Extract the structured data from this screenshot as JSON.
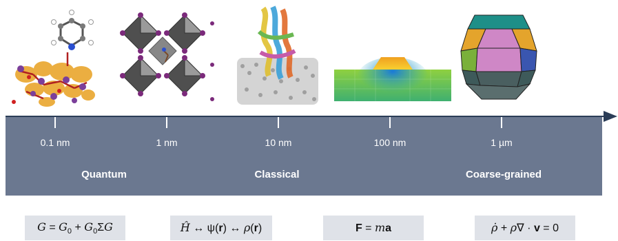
{
  "scale": {
    "ticks": [
      {
        "label": "0.1 nm"
      },
      {
        "label": "1 nm"
      },
      {
        "label": "10 nm"
      },
      {
        "label": "100 nm"
      },
      {
        "label": "1 µm"
      }
    ],
    "regimes": [
      "Quantum",
      "Classical",
      "Coarse-grained"
    ]
  },
  "equations": [
    {
      "id": "greens-function",
      "text": "G = G0 + G0ΣG"
    },
    {
      "id": "dft",
      "text": "Ĥ ↔ ψ(r) ↔ ρ(r)"
    },
    {
      "id": "newton",
      "text": "F = ma"
    },
    {
      "id": "continuity",
      "text": "ρ̇ + ρ∇ · v = 0"
    }
  ],
  "illustrations": [
    {
      "id": "molecule-on-surface",
      "icon": "molecule-surface-icon"
    },
    {
      "id": "perovskite-lattice",
      "icon": "octahedral-lattice-icon"
    },
    {
      "id": "protein-in-membrane",
      "icon": "protein-membrane-icon"
    },
    {
      "id": "finite-element-mesh",
      "icon": "fem-mesh-icon"
    },
    {
      "id": "polyhedral-particle",
      "icon": "polyhedron-icon"
    }
  ],
  "colors": {
    "panel": "#6b7890",
    "axis": "#2b3d57",
    "equation_box": "#dfe2e8",
    "text_light": "#ffffff"
  }
}
